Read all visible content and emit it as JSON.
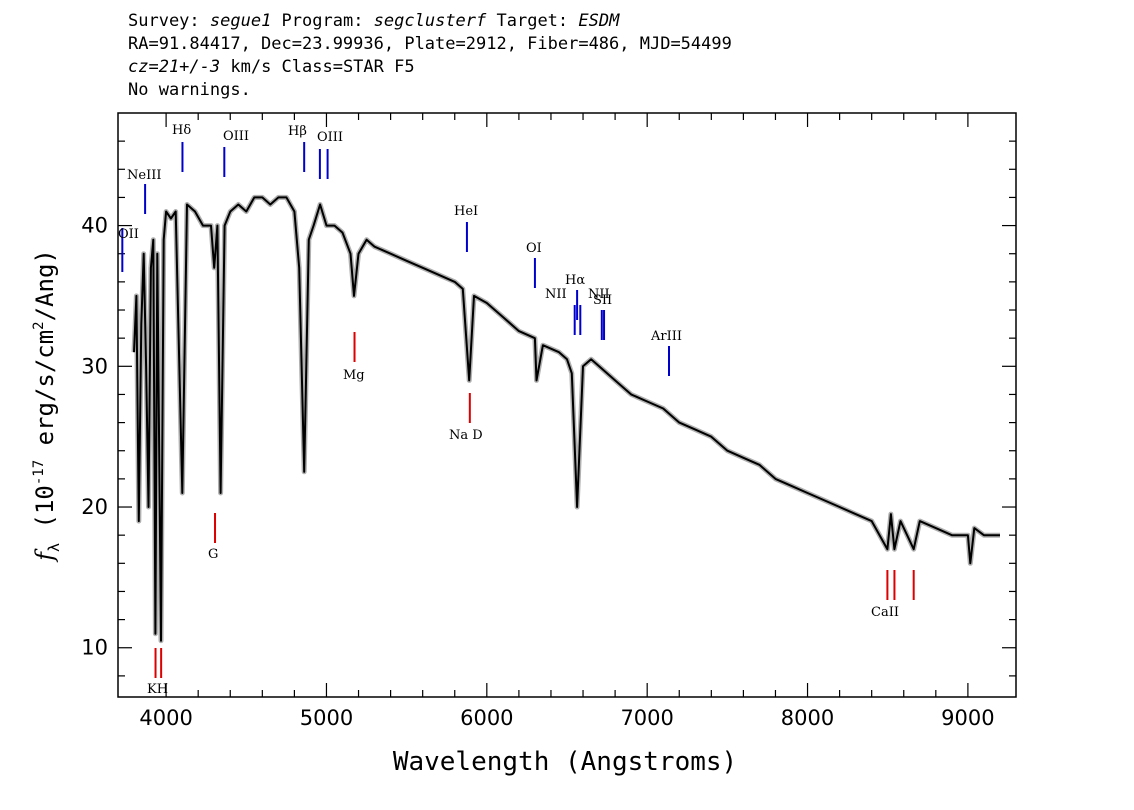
{
  "header": {
    "line1": {
      "survey_label": "Survey: ",
      "survey": "segue1",
      "program_label": " Program: ",
      "program": "segclusterf",
      "target_label": " Target: ",
      "target": "ESDM"
    },
    "line2": "RA=91.84417, Dec=23.99936, Plate=2912, Fiber=486, MJD=54499",
    "line3": {
      "cz": "cz=21+/-3",
      "rest": " km/s Class=STAR F5"
    },
    "line4": "No warnings."
  },
  "chart_data": {
    "type": "line",
    "xlabel": "Wavelength (Angstroms)",
    "ylabel": "f_λ (10^-17 erg/s/cm^2/Ang)",
    "xlim": [
      3700,
      9300
    ],
    "ylim": [
      6.5,
      48
    ],
    "xticks": [
      4000,
      5000,
      6000,
      7000,
      8000,
      9000
    ],
    "yticks": [
      10,
      20,
      30,
      40
    ],
    "colors": {
      "spectrum": "#000000",
      "error_band": "#b0b0b0",
      "emission": "#0000cc",
      "absorption": "#dd0000"
    },
    "series": [
      {
        "values": [
          [
            3800,
            31
          ],
          [
            3815,
            35
          ],
          [
            3830,
            19
          ],
          [
            3845,
            33
          ],
          [
            3860,
            38
          ],
          [
            3875,
            30
          ],
          [
            3890,
            20
          ],
          [
            3905,
            37
          ],
          [
            3920,
            39
          ],
          [
            3933,
            11
          ],
          [
            3945,
            38
          ],
          [
            3968,
            10.5
          ],
          [
            3985,
            39
          ],
          [
            4000,
            41
          ],
          [
            4030,
            40.5
          ],
          [
            4060,
            41
          ],
          [
            4101,
            21
          ],
          [
            4130,
            41.5
          ],
          [
            4180,
            41
          ],
          [
            4230,
            40
          ],
          [
            4280,
            40
          ],
          [
            4300,
            37
          ],
          [
            4320,
            40
          ],
          [
            4340,
            21
          ],
          [
            4365,
            40
          ],
          [
            4400,
            41
          ],
          [
            4450,
            41.5
          ],
          [
            4500,
            41
          ],
          [
            4550,
            42
          ],
          [
            4600,
            42
          ],
          [
            4650,
            41.5
          ],
          [
            4700,
            42
          ],
          [
            4750,
            42
          ],
          [
            4800,
            41
          ],
          [
            4830,
            37
          ],
          [
            4861,
            22.5
          ],
          [
            4890,
            39
          ],
          [
            4920,
            40
          ],
          [
            4960,
            41.5
          ],
          [
            5000,
            40
          ],
          [
            5050,
            40
          ],
          [
            5100,
            39.5
          ],
          [
            5150,
            38
          ],
          [
            5172,
            35
          ],
          [
            5200,
            38
          ],
          [
            5250,
            39
          ],
          [
            5300,
            38.5
          ],
          [
            5400,
            38
          ],
          [
            5500,
            37.5
          ],
          [
            5600,
            37
          ],
          [
            5700,
            36.5
          ],
          [
            5800,
            36
          ],
          [
            5850,
            35.5
          ],
          [
            5890,
            29
          ],
          [
            5920,
            35
          ],
          [
            6000,
            34.5
          ],
          [
            6100,
            33.5
          ],
          [
            6200,
            32.5
          ],
          [
            6300,
            32
          ],
          [
            6310,
            29
          ],
          [
            6350,
            31.5
          ],
          [
            6450,
            31
          ],
          [
            6500,
            30.5
          ],
          [
            6530,
            29.5
          ],
          [
            6563,
            20
          ],
          [
            6600,
            30
          ],
          [
            6650,
            30.5
          ],
          [
            6700,
            30
          ],
          [
            6800,
            29
          ],
          [
            6900,
            28
          ],
          [
            7000,
            27.5
          ],
          [
            7100,
            27
          ],
          [
            7200,
            26
          ],
          [
            7300,
            25.5
          ],
          [
            7400,
            25
          ],
          [
            7500,
            24
          ],
          [
            7600,
            23.5
          ],
          [
            7700,
            23
          ],
          [
            7800,
            22
          ],
          [
            7900,
            21.5
          ],
          [
            8000,
            21
          ],
          [
            8100,
            20.5
          ],
          [
            8200,
            20
          ],
          [
            8300,
            19.5
          ],
          [
            8400,
            19
          ],
          [
            8498,
            17
          ],
          [
            8520,
            19.5
          ],
          [
            8542,
            17
          ],
          [
            8580,
            19
          ],
          [
            8662,
            17
          ],
          [
            8700,
            19
          ],
          [
            8800,
            18.5
          ],
          [
            8900,
            18
          ],
          [
            9000,
            18
          ],
          [
            9015,
            16
          ],
          [
            9040,
            18.5
          ],
          [
            9100,
            18
          ],
          [
            9200,
            18
          ]
        ]
      }
    ],
    "lines": [
      {
        "label": "OII",
        "wave": 3727,
        "type": "emission"
      },
      {
        "label": "NeIII",
        "wave": 3869,
        "type": "emission"
      },
      {
        "label": "Hδ",
        "wave": 4102,
        "type": "emission"
      },
      {
        "label": "OIII",
        "wave": 4363,
        "type": "emission"
      },
      {
        "label": "Hβ",
        "wave": 4861,
        "type": "emission"
      },
      {
        "label": "OIII",
        "wave": 4959,
        "type": "emission"
      },
      {
        "label": "OIII",
        "wave": 5007,
        "type": "emission"
      },
      {
        "label": "HeI",
        "wave": 5876,
        "type": "emission"
      },
      {
        "label": "OI",
        "wave": 6300,
        "type": "emission"
      },
      {
        "label": "NII",
        "wave": 6548,
        "type": "emission"
      },
      {
        "label": "Hα",
        "wave": 6563,
        "type": "emission"
      },
      {
        "label": "NII",
        "wave": 6583,
        "type": "emission"
      },
      {
        "label": "SII",
        "wave": 6717,
        "type": "emission"
      },
      {
        "label": "SII",
        "wave": 6731,
        "type": "emission"
      },
      {
        "label": "ArIII",
        "wave": 7136,
        "type": "emission"
      },
      {
        "label": "K",
        "wave": 3934,
        "type": "absorption"
      },
      {
        "label": "H",
        "wave": 3969,
        "type": "absorption"
      },
      {
        "label": "G",
        "wave": 4305,
        "type": "absorption"
      },
      {
        "label": "Mg",
        "wave": 5175,
        "type": "absorption"
      },
      {
        "label": "Na D",
        "wave": 5894,
        "type": "absorption"
      },
      {
        "label": "CaII",
        "wave": 8498,
        "type": "absorption"
      },
      {
        "label": "CaII",
        "wave": 8542,
        "type": "absorption"
      },
      {
        "label": "CaII",
        "wave": 8662,
        "type": "absorption"
      }
    ],
    "line_label_text": {
      "OII": "OII",
      "NeIII": "NeIII",
      "Hd": "Hδ",
      "OIII_a": "OIII",
      "Hb": "Hβ",
      "OIII_b": "OIII",
      "HeI": "HeI",
      "OI": "OI",
      "NII_a": "NII",
      "Ha": "Hα",
      "NII_b": "NII",
      "SII": "SII",
      "ArIII": "ArIII",
      "KH": "KH",
      "G": "G",
      "Mg": "Mg",
      "NaD": "Na D",
      "CaII": "CaII"
    }
  }
}
